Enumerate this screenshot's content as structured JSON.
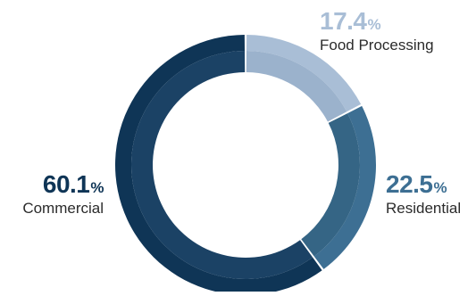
{
  "chart_data": {
    "type": "pie",
    "donut": true,
    "categories": [
      "Food Processing",
      "Residential",
      "Commercial"
    ],
    "values": [
      17.4,
      22.5,
      60.1
    ],
    "value_labels": [
      "17.4",
      "22.5",
      "60.1"
    ],
    "unit": "%",
    "colors": [
      "#a9bed6",
      "#3d6f93",
      "#0f3556"
    ],
    "inner_shade_colors": [
      "#9bb2cc",
      "#356585",
      "#1b4265"
    ],
    "start_angle_deg": 0,
    "direction": "clockwise",
    "legend": "none"
  }
}
